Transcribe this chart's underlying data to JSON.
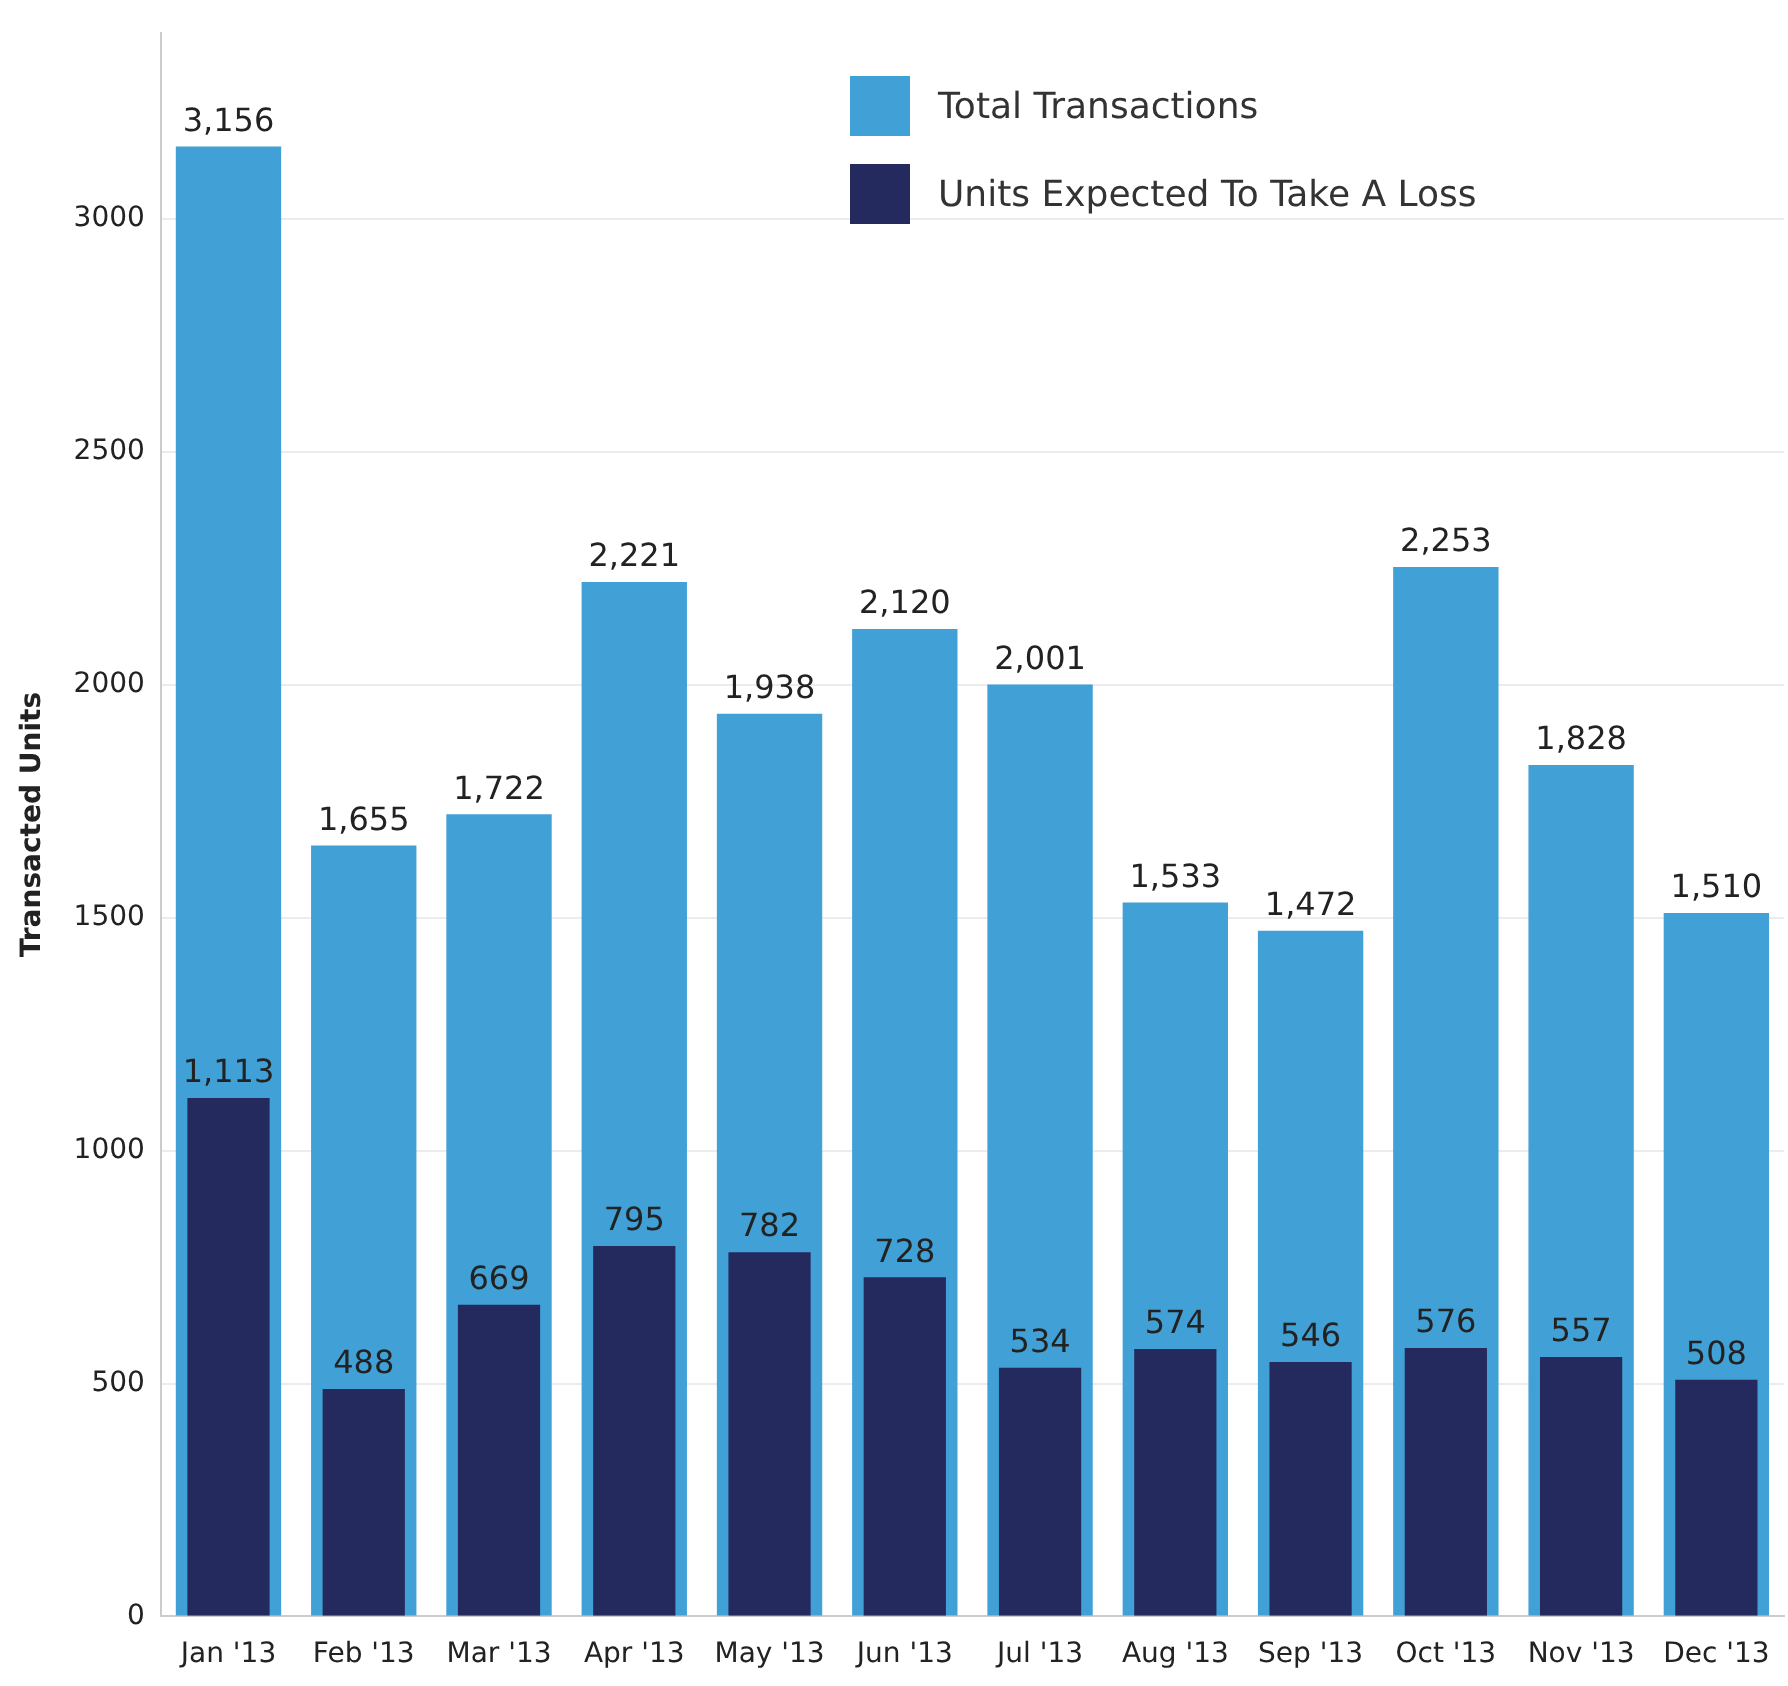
{
  "chart_data": {
    "type": "bar",
    "ylabel": "Transacted Units",
    "categories": [
      "Jan '13",
      "Feb '13",
      "Mar '13",
      "Apr '13",
      "May '13",
      "Jun '13",
      "Jul '13",
      "Aug '13",
      "Sep '13",
      "Oct '13",
      "Nov '13",
      "Dec '13"
    ],
    "series": [
      {
        "name": "Total Transactions",
        "color": "#41a1d6",
        "values": [
          3156,
          1655,
          1722,
          2221,
          1938,
          2120,
          2001,
          1533,
          1472,
          2253,
          1828,
          1510
        ],
        "value_labels": [
          "3,156",
          "1,655",
          "1,722",
          "2,221",
          "1,938",
          "2,120",
          "2,001",
          "1,533",
          "1,472",
          "2,253",
          "1,828",
          "1,510"
        ]
      },
      {
        "name": "Units Expected To Take A Loss",
        "color": "#252a5e",
        "values": [
          1113,
          488,
          669,
          795,
          782,
          728,
          534,
          574,
          546,
          576,
          557,
          508
        ],
        "value_labels": [
          "1,113",
          "488",
          "669",
          "795",
          "782",
          "728",
          "534",
          "574",
          "546",
          "576",
          "557",
          "508"
        ]
      }
    ],
    "ylim": [
      0,
      3400
    ],
    "yticks": [
      0,
      500,
      1000,
      1500,
      2000,
      2500,
      3000
    ],
    "grid": "y",
    "legend": "top right"
  }
}
